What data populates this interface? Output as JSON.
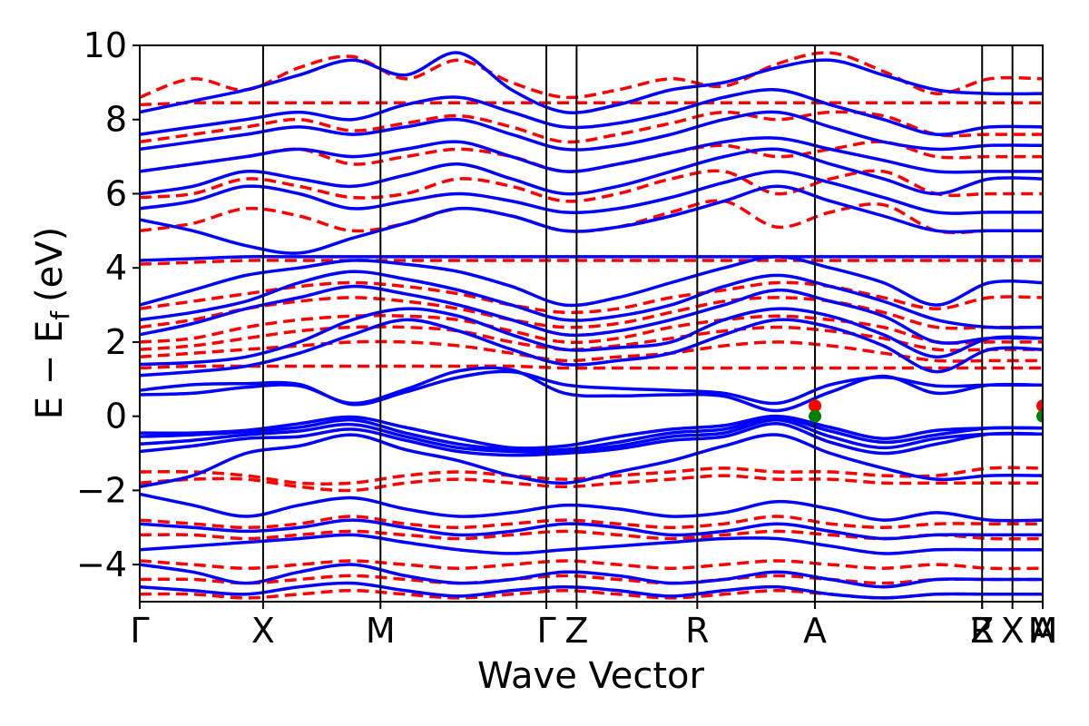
{
  "chart_data": {
    "type": "line",
    "title": "",
    "xlabel": "Wave Vector",
    "ylabel": "E − E",
    "ylabel_subscript": "f",
    "ylabel_unit": "(eV)",
    "ylim": [
      -5,
      10
    ],
    "yticks": [
      10,
      8,
      6,
      4,
      2,
      0,
      -2,
      -4
    ],
    "ytick_labels": [
      "10",
      "8",
      "6",
      "4",
      "2",
      "0",
      "−2",
      "−4"
    ],
    "kpath_length": 1.0,
    "high_symmetry_points": [
      {
        "label": "Γ",
        "k": 0.0
      },
      {
        "label": "X",
        "k": 0.1366
      },
      {
        "label": "M",
        "k": 0.2666
      },
      {
        "label": "Γ",
        "k": 0.4503
      },
      {
        "label": "Z",
        "k": 0.4838
      },
      {
        "label": "R",
        "k": 0.6174
      },
      {
        "label": "A",
        "k": 0.7478
      },
      {
        "label": "Z",
        "k": 0.9329
      },
      {
        "label": "R",
        "k": 0.9329
      },
      {
        "label": "X",
        "k": 0.9665
      },
      {
        "label": "M",
        "k": 1.0
      },
      {
        "label": "A",
        "k": 1.0
      }
    ],
    "series": [
      {
        "name": "band structure (solid)",
        "color": "#0000ff",
        "style": "solid",
        "bands": [
          [
            0.7,
            0.85,
            0.88,
            0.86,
            0.32,
            0.65,
            1.05,
            1.2,
            0.85,
            0.75,
            0.7,
            0.62,
            0.35,
            0.85,
            1.05,
            0.82,
            0.84,
            0.84
          ],
          [
            0.58,
            0.62,
            0.78,
            0.82,
            0.35,
            0.72,
            1.22,
            1.25,
            0.62,
            0.55,
            0.58,
            0.54,
            0.15,
            0.65,
            1.08,
            0.62,
            0.84,
            0.84
          ],
          [
            -0.45,
            -0.45,
            -0.38,
            -0.2,
            -0.02,
            -0.3,
            -0.6,
            -0.85,
            -0.8,
            -0.55,
            -0.35,
            -0.25,
            0.0,
            -0.3,
            -0.6,
            -0.38,
            -0.32,
            -0.32
          ],
          [
            -0.55,
            -0.5,
            -0.42,
            -0.3,
            -0.1,
            -0.45,
            -0.75,
            -0.9,
            -0.9,
            -0.7,
            -0.45,
            -0.35,
            -0.05,
            -0.4,
            -0.7,
            -0.5,
            -0.32,
            -0.32
          ],
          [
            -0.75,
            -0.65,
            -0.5,
            -0.4,
            -0.22,
            -0.55,
            -0.85,
            -0.95,
            -0.95,
            -0.8,
            -0.55,
            -0.45,
            -0.1,
            -0.55,
            -0.85,
            -0.6,
            -0.48,
            -0.48
          ],
          [
            -0.95,
            -0.8,
            -0.6,
            -0.55,
            -0.35,
            -0.65,
            -0.95,
            -1.05,
            -1.0,
            -0.88,
            -0.65,
            -0.55,
            -0.2,
            -0.7,
            -1.0,
            -0.75,
            -0.48,
            -0.48
          ],
          [
            -1.9,
            -1.6,
            -1.0,
            -0.8,
            -0.5,
            -0.9,
            -1.2,
            -1.6,
            -1.8,
            -1.5,
            -1.2,
            -0.8,
            -0.5,
            -1.0,
            -1.4,
            -1.7,
            -1.6,
            -1.6
          ],
          [
            -2.1,
            -2.4,
            -2.7,
            -2.4,
            -2.2,
            -2.5,
            -2.7,
            -2.6,
            -2.4,
            -2.5,
            -2.7,
            -2.6,
            -2.3,
            -2.5,
            -2.8,
            -2.6,
            -2.8,
            -2.8
          ],
          [
            -2.9,
            -3.0,
            -3.1,
            -3.0,
            -2.8,
            -3.0,
            -3.2,
            -3.1,
            -2.9,
            -3.0,
            -3.2,
            -3.1,
            -2.9,
            -3.1,
            -3.3,
            -3.2,
            -3.2,
            -3.2
          ],
          [
            -3.6,
            -3.5,
            -3.4,
            -3.3,
            -3.2,
            -3.4,
            -3.6,
            -3.7,
            -3.6,
            -3.5,
            -3.4,
            -3.3,
            -3.3,
            -3.5,
            -3.7,
            -3.6,
            -3.6,
            -3.6
          ],
          [
            -4.0,
            -4.2,
            -4.5,
            -4.2,
            -4.0,
            -4.3,
            -4.5,
            -4.4,
            -4.2,
            -4.3,
            -4.5,
            -4.4,
            -4.2,
            -4.4,
            -4.6,
            -4.4,
            -4.4,
            -4.4
          ],
          [
            -4.6,
            -4.7,
            -4.8,
            -4.6,
            -4.5,
            -4.7,
            -4.85,
            -4.7,
            -4.6,
            -4.7,
            -4.85,
            -4.7,
            -4.6,
            -4.8,
            -4.9,
            -4.8,
            -4.8,
            -4.8
          ],
          [
            1.1,
            1.2,
            1.35,
            1.7,
            2.2,
            2.6,
            2.3,
            1.8,
            1.4,
            1.5,
            1.7,
            2.2,
            2.6,
            2.4,
            1.9,
            1.2,
            1.8,
            1.8
          ],
          [
            1.4,
            1.45,
            1.6,
            2.0,
            2.6,
            2.9,
            2.7,
            2.2,
            1.8,
            1.85,
            2.0,
            2.6,
            2.9,
            2.7,
            2.2,
            1.6,
            2.1,
            2.1
          ],
          [
            2.2,
            2.5,
            2.9,
            3.2,
            3.5,
            3.3,
            3.0,
            2.6,
            2.2,
            2.3,
            2.6,
            3.0,
            3.4,
            3.1,
            2.7,
            2.0,
            2.1,
            2.1
          ],
          [
            2.6,
            2.8,
            3.1,
            3.6,
            3.9,
            3.7,
            3.4,
            3.0,
            2.6,
            2.7,
            3.0,
            3.5,
            3.8,
            3.5,
            3.1,
            2.6,
            2.4,
            2.4
          ],
          [
            3.0,
            3.4,
            3.8,
            4.0,
            4.2,
            4.1,
            3.9,
            3.5,
            3.0,
            3.2,
            3.6,
            4.0,
            4.3,
            4.0,
            3.6,
            3.0,
            3.6,
            3.6
          ],
          [
            4.2,
            4.25,
            4.3,
            4.3,
            4.3,
            4.3,
            4.3,
            4.3,
            4.3,
            4.3,
            4.3,
            4.3,
            4.3,
            4.3,
            4.3,
            4.3,
            4.3,
            4.3
          ],
          [
            5.3,
            5.0,
            4.6,
            4.4,
            4.8,
            5.2,
            5.6,
            5.4,
            5.0,
            5.1,
            5.4,
            5.8,
            6.2,
            5.8,
            5.4,
            5.0,
            5.0,
            5.0
          ],
          [
            5.6,
            5.8,
            6.2,
            6.0,
            5.6,
            5.8,
            6.0,
            5.8,
            5.5,
            5.6,
            5.9,
            6.3,
            6.6,
            6.3,
            5.9,
            5.5,
            5.5,
            5.5
          ],
          [
            6.0,
            6.2,
            6.6,
            6.4,
            6.2,
            6.5,
            6.8,
            6.4,
            6.0,
            6.2,
            6.6,
            7.0,
            7.2,
            6.8,
            6.4,
            6.0,
            6.4,
            6.4
          ],
          [
            6.6,
            6.8,
            7.0,
            7.2,
            7.0,
            7.2,
            7.4,
            7.0,
            6.6,
            6.8,
            7.1,
            7.4,
            7.5,
            7.2,
            6.9,
            6.6,
            6.6,
            6.6
          ],
          [
            7.2,
            7.4,
            7.6,
            7.8,
            7.6,
            7.8,
            8.0,
            7.6,
            7.2,
            7.3,
            7.6,
            8.0,
            8.2,
            7.8,
            7.4,
            7.2,
            7.3,
            7.3
          ],
          [
            8.2,
            8.5,
            8.8,
            9.2,
            9.6,
            9.2,
            9.8,
            8.8,
            8.2,
            8.4,
            8.8,
            9.0,
            9.4,
            9.6,
            9.2,
            8.8,
            8.7,
            8.7
          ],
          [
            7.6,
            7.8,
            8.0,
            8.2,
            8.0,
            8.4,
            8.6,
            8.2,
            7.8,
            7.9,
            8.2,
            8.6,
            8.8,
            8.4,
            8.0,
            7.6,
            7.8,
            7.8
          ]
        ]
      },
      {
        "name": "band structure (dashed)",
        "color": "#ff0000",
        "style": "dashed",
        "bands": [
          [
            1.3,
            1.35,
            1.35,
            1.35,
            1.35,
            1.35,
            1.35,
            1.35,
            1.3,
            1.3,
            1.3,
            1.3,
            1.3,
            1.3,
            1.3,
            1.3,
            1.3,
            1.3
          ],
          [
            1.6,
            1.7,
            1.8,
            1.9,
            2.0,
            2.0,
            1.9,
            1.7,
            1.5,
            1.6,
            1.7,
            1.9,
            2.0,
            1.9,
            1.7,
            1.5,
            1.5,
            1.5
          ],
          [
            1.8,
            1.9,
            2.1,
            2.3,
            2.4,
            2.4,
            2.3,
            2.0,
            1.8,
            1.9,
            2.1,
            2.3,
            2.4,
            2.3,
            2.1,
            1.8,
            1.8,
            1.8
          ],
          [
            2.0,
            2.1,
            2.4,
            2.6,
            2.7,
            2.7,
            2.6,
            2.3,
            2.0,
            2.1,
            2.4,
            2.6,
            2.7,
            2.6,
            2.4,
            2.0,
            2.0,
            2.0
          ],
          [
            2.4,
            2.6,
            2.9,
            3.1,
            3.2,
            3.1,
            2.9,
            2.6,
            2.4,
            2.5,
            2.8,
            3.1,
            3.2,
            3.1,
            2.8,
            2.4,
            2.4,
            2.4
          ],
          [
            2.9,
            3.1,
            3.3,
            3.5,
            3.6,
            3.5,
            3.3,
            3.0,
            2.8,
            2.9,
            3.2,
            3.4,
            3.6,
            3.5,
            3.2,
            2.9,
            3.2,
            3.2
          ],
          [
            4.1,
            4.15,
            4.2,
            4.2,
            4.2,
            4.2,
            4.2,
            4.2,
            4.2,
            4.2,
            4.2,
            4.2,
            4.2,
            4.2,
            4.2,
            4.2,
            4.2,
            4.2
          ],
          [
            5.0,
            5.2,
            5.6,
            5.4,
            5.0,
            5.2,
            5.6,
            5.4,
            5.0,
            5.1,
            5.5,
            5.8,
            5.1,
            5.5,
            5.7,
            5.0,
            5.0,
            5.0
          ],
          [
            5.9,
            6.0,
            6.4,
            6.2,
            5.9,
            6.0,
            6.4,
            6.2,
            5.8,
            6.0,
            6.4,
            6.6,
            6.0,
            6.4,
            6.6,
            6.0,
            6.0,
            6.0
          ],
          [
            6.6,
            6.8,
            7.0,
            7.2,
            6.8,
            7.0,
            7.2,
            7.0,
            6.6,
            6.8,
            7.1,
            7.3,
            7.0,
            7.2,
            7.4,
            7.0,
            7.0,
            7.0
          ],
          [
            7.4,
            7.6,
            7.8,
            8.0,
            7.7,
            7.9,
            8.1,
            7.8,
            7.4,
            7.6,
            7.9,
            8.2,
            8.0,
            8.2,
            8.1,
            7.6,
            7.6,
            7.6
          ],
          [
            8.4,
            8.45,
            8.45,
            8.45,
            8.45,
            8.45,
            8.45,
            8.45,
            8.45,
            8.45,
            8.45,
            8.45,
            8.45,
            8.45,
            8.45,
            8.45,
            8.45,
            8.45
          ],
          [
            8.6,
            9.1,
            8.8,
            9.4,
            9.7,
            9.1,
            9.6,
            9.0,
            8.6,
            8.8,
            9.1,
            8.9,
            9.5,
            9.8,
            9.3,
            8.7,
            9.1,
            9.1
          ],
          [
            -1.5,
            -1.5,
            -1.6,
            -1.8,
            -1.8,
            -1.6,
            -1.5,
            -1.6,
            -1.7,
            -1.6,
            -1.5,
            -1.4,
            -1.5,
            -1.5,
            -1.6,
            -1.6,
            -1.4,
            -1.4
          ],
          [
            -1.8,
            -1.7,
            -1.7,
            -1.9,
            -2.0,
            -1.8,
            -1.7,
            -1.8,
            -1.9,
            -1.8,
            -1.7,
            -1.6,
            -1.7,
            -1.7,
            -1.8,
            -1.8,
            -1.8,
            -1.8
          ],
          [
            -2.8,
            -2.9,
            -3.0,
            -2.9,
            -2.7,
            -2.9,
            -3.0,
            -2.9,
            -2.8,
            -2.9,
            -3.0,
            -2.9,
            -2.7,
            -2.9,
            -3.0,
            -2.9,
            -2.9,
            -2.9
          ],
          [
            -3.2,
            -3.2,
            -3.3,
            -3.2,
            -3.1,
            -3.2,
            -3.3,
            -3.2,
            -3.1,
            -3.2,
            -3.3,
            -3.2,
            -3.1,
            -3.2,
            -3.3,
            -3.2,
            -3.3,
            -3.3
          ],
          [
            -3.9,
            -4.0,
            -4.1,
            -4.0,
            -3.9,
            -4.0,
            -4.1,
            -4.0,
            -3.9,
            -4.0,
            -4.1,
            -4.0,
            -3.9,
            -4.0,
            -4.1,
            -4.0,
            -4.1,
            -4.1
          ],
          [
            -4.4,
            -4.4,
            -4.5,
            -4.4,
            -4.3,
            -4.4,
            -4.5,
            -4.4,
            -4.3,
            -4.4,
            -4.5,
            -4.4,
            -4.3,
            -4.4,
            -4.5,
            -4.4,
            -4.4,
            -4.4
          ],
          [
            -4.8,
            -4.8,
            -4.9,
            -4.8,
            -4.7,
            -4.8,
            -4.9,
            -4.8,
            -4.7,
            -4.8,
            -4.9,
            -4.8,
            -4.7,
            -4.8,
            -4.9,
            -4.8,
            -4.8,
            -4.8
          ]
        ]
      }
    ],
    "markers": [
      {
        "name": "CBM",
        "k": 0.7478,
        "e": 0.28,
        "color": "#ff0000"
      },
      {
        "name": "VBM",
        "k": 0.7478,
        "e": 0.0,
        "color": "#008000"
      },
      {
        "name": "CBM",
        "k": 1.0,
        "e": 0.28,
        "color": "#ff0000"
      },
      {
        "name": "VBM",
        "k": 1.0,
        "e": 0.0,
        "color": "#008000"
      }
    ],
    "grid": false,
    "legend": "none"
  }
}
